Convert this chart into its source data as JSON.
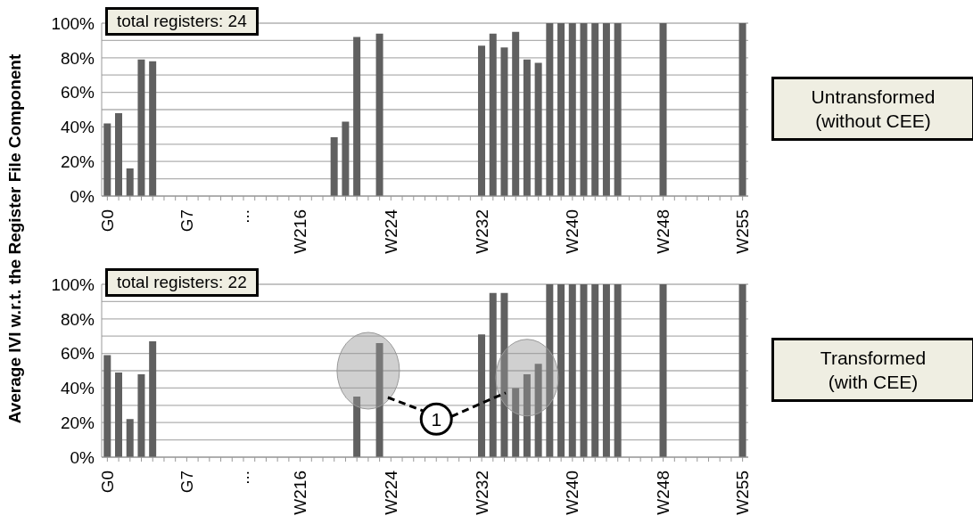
{
  "chart_data": [
    {
      "type": "bar",
      "ylabel": "Average IVI w.r.t. the Register File Component",
      "categories": [
        "G0",
        null,
        null,
        null,
        null,
        null,
        null,
        "G7",
        null,
        null,
        null,
        null,
        "...",
        null,
        null,
        null,
        null,
        "W216",
        null,
        null,
        null,
        null,
        null,
        null,
        null,
        "W224",
        null,
        null,
        null,
        null,
        null,
        null,
        null,
        "W232",
        null,
        null,
        null,
        null,
        null,
        null,
        null,
        "W240",
        null,
        null,
        null,
        null,
        null,
        null,
        null,
        "W248",
        null,
        null,
        null,
        null,
        null,
        null,
        "W255"
      ],
      "values": [
        42,
        48,
        16,
        79,
        78,
        null,
        null,
        null,
        null,
        null,
        null,
        null,
        null,
        null,
        null,
        null,
        null,
        null,
        null,
        null,
        34,
        43,
        92,
        null,
        94,
        null,
        null,
        null,
        null,
        null,
        null,
        null,
        null,
        87,
        94,
        86,
        95,
        79,
        77,
        100,
        100,
        100,
        100,
        100,
        100,
        100,
        null,
        null,
        null,
        100,
        null,
        null,
        null,
        null,
        null,
        null,
        100
      ],
      "color": "#606060",
      "ylim": [
        0,
        100
      ],
      "yticks": [
        {
          "value": 0,
          "label": "0%"
        },
        {
          "value": 10,
          "label": null
        },
        {
          "value": 20,
          "label": "20%"
        },
        {
          "value": 30,
          "label": null
        },
        {
          "value": 40,
          "label": "40%"
        },
        {
          "value": 50,
          "label": null
        },
        {
          "value": 60,
          "label": "60%"
        },
        {
          "value": 70,
          "label": null
        },
        {
          "value": 80,
          "label": "80%"
        },
        {
          "value": 90,
          "label": null
        },
        {
          "value": 100,
          "label": "100%"
        }
      ],
      "grid": "y",
      "annotations": [
        "total registers: 24",
        "Untransformed\n(without CEE)"
      ]
    },
    {
      "type": "bar",
      "categories": [
        "G0",
        null,
        null,
        null,
        null,
        null,
        null,
        "G7",
        null,
        null,
        null,
        null,
        "...",
        null,
        null,
        null,
        null,
        "W216",
        null,
        null,
        null,
        null,
        null,
        null,
        null,
        "W224",
        null,
        null,
        null,
        null,
        null,
        null,
        null,
        "W232",
        null,
        null,
        null,
        null,
        null,
        null,
        null,
        "W240",
        null,
        null,
        null,
        null,
        null,
        null,
        null,
        "W248",
        null,
        null,
        null,
        null,
        null,
        null,
        "W255"
      ],
      "values": [
        59,
        49,
        22,
        48,
        67,
        null,
        null,
        null,
        null,
        null,
        null,
        null,
        null,
        null,
        null,
        null,
        null,
        null,
        null,
        null,
        null,
        null,
        35,
        null,
        66,
        null,
        null,
        null,
        null,
        null,
        null,
        null,
        null,
        71,
        95,
        95,
        40,
        48,
        54,
        100,
        100,
        100,
        100,
        100,
        100,
        100,
        null,
        null,
        null,
        100,
        null,
        null,
        null,
        null,
        null,
        null,
        100
      ],
      "color": "#606060",
      "ylim": [
        0,
        100
      ],
      "yticks": [
        {
          "value": 0,
          "label": "0%"
        },
        {
          "value": 10,
          "label": null
        },
        {
          "value": 20,
          "label": "20%"
        },
        {
          "value": 30,
          "label": null
        },
        {
          "value": 40,
          "label": "40%"
        },
        {
          "value": 50,
          "label": null
        },
        {
          "value": 60,
          "label": "60%"
        },
        {
          "value": 70,
          "label": null
        },
        {
          "value": 80,
          "label": "80%"
        },
        {
          "value": 90,
          "label": null
        },
        {
          "value": 100,
          "label": "100%"
        }
      ],
      "grid": "y",
      "annotations": [
        "total registers: 22",
        "Transformed\n(with CEE)",
        {
          "text": "1",
          "y": 22
        }
      ]
    }
  ]
}
